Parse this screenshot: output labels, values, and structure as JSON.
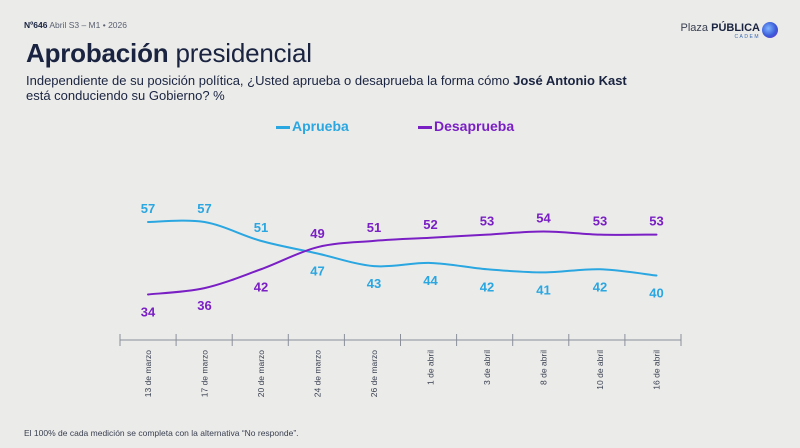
{
  "header": {
    "meta_num": "Nº646",
    "meta_rest": "Abril S3 – M1 • 2026",
    "title_bold": "Aprobación",
    "title_rest": "presidencial",
    "subtitle_pre": "Independiente de su posición política, ¿Usted aprueba o desaprueba la forma cómo",
    "subtitle_bold": "José Antonio Kast",
    "subtitle_post": "está conduciendo su Gobierno? %"
  },
  "logo": {
    "plaza": "Plaza",
    "publica": "PÚBLICA",
    "cadem": "CADEM"
  },
  "footer": {
    "note": "El 100% de cada medición se completa con la alternativa “No responde”."
  },
  "colors": {
    "aprueba": "#2aa6e0",
    "desaprueba": "#7a1fc4"
  },
  "chart_data": {
    "type": "line",
    "x": [
      "13 de marzo",
      "17 de marzo",
      "20 de marzo",
      "24 de marzo",
      "26 de marzo",
      "1 de abril",
      "3 de abril",
      "8 de abril",
      "10 de abril",
      "16 de abril"
    ],
    "series": [
      {
        "name": "Aprueba",
        "values": [
          57,
          57,
          51,
          47,
          43,
          44,
          42,
          41,
          42,
          40
        ]
      },
      {
        "name": "Desaprueba",
        "values": [
          34,
          36,
          42,
          49,
          51,
          52,
          53,
          54,
          53,
          53
        ]
      }
    ],
    "legend_position": "top-center",
    "grid": false
  }
}
